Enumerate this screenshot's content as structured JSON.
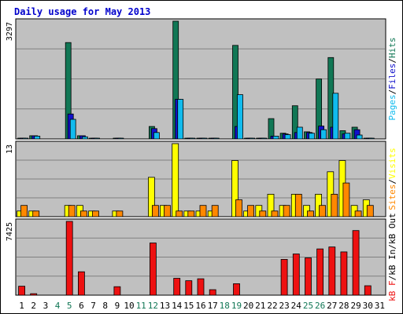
{
  "chart_data": {
    "type": "bar",
    "title": "Daily usage for May 2013",
    "categories": [
      "1",
      "2",
      "3",
      "4",
      "5",
      "6",
      "7",
      "8",
      "9",
      "10",
      "11",
      "12",
      "13",
      "14",
      "15",
      "16",
      "17",
      "18",
      "19",
      "20",
      "21",
      "22",
      "23",
      "24",
      "25",
      "26",
      "27",
      "28",
      "29",
      "30",
      "31"
    ],
    "weekend_days": [
      "4",
      "5",
      "11",
      "12",
      "18",
      "19",
      "25",
      "26"
    ],
    "panels": [
      {
        "name": "Hits / Files / Pages",
        "max_label": "3297",
        "ylim": [
          0,
          3297
        ],
        "legend": [
          "Pages",
          "/",
          "Files",
          "/",
          "Hits"
        ],
        "series": [
          {
            "name": "Hits",
            "color": "#117755",
            "values": [
              8,
              90,
              0,
              0,
              2700,
              90,
              14,
              0,
              10,
              0,
              0,
              350,
              0,
              3297,
              4,
              4,
              4,
              0,
              2620,
              4,
              6,
              570,
              160,
              930,
              200,
              1680,
              2280,
              230,
              330,
              14,
              0
            ]
          },
          {
            "name": "Files",
            "color": "#1111cc",
            "values": [
              4,
              90,
              0,
              0,
              700,
              90,
              4,
              0,
              4,
              0,
              0,
              290,
              0,
              1110,
              4,
              4,
              4,
              0,
              350,
              4,
              4,
              80,
              140,
              180,
              180,
              360,
              330,
              140,
              260,
              4,
              0
            ]
          },
          {
            "name": "Pages",
            "color": "#11bbee",
            "values": [
              4,
              80,
              0,
              0,
              550,
              60,
              4,
              0,
              4,
              0,
              0,
              180,
              0,
              1110,
              4,
              4,
              4,
              0,
              1240,
              4,
              4,
              80,
              120,
              330,
              160,
              260,
              1280,
              160,
              110,
              4,
              0
            ]
          }
        ]
      },
      {
        "name": "Visits / Sites",
        "max_label": "13",
        "ylim": [
          0,
          13
        ],
        "legend": [
          "Sites",
          "/",
          "Visits"
        ],
        "series": [
          {
            "name": "Visits",
            "color": "#ffff00",
            "values": [
              1,
              1,
              0,
              0,
              2,
              2,
              1,
              0,
              1,
              0,
              0,
              7,
              2,
              13,
              1,
              1,
              1,
              0,
              10,
              1,
              2,
              4,
              2,
              4,
              2,
              4,
              8,
              10,
              2,
              3,
              0
            ]
          },
          {
            "name": "Sites",
            "color": "#ff8800",
            "values": [
              2,
              1,
              0,
              0,
              2,
              1,
              1,
              0,
              1,
              0,
              0,
              2,
              2,
              1,
              1,
              2,
              2,
              0,
              3,
              2,
              1,
              1,
              2,
              4,
              1,
              2,
              4,
              6,
              1,
              2,
              0
            ]
          }
        ]
      },
      {
        "name": "kB F / kB In / kB Out",
        "max_label": "7425",
        "ylim": [
          0,
          7425
        ],
        "legend": [
          "kB F",
          "/",
          "kB In",
          "/",
          "kB Out"
        ],
        "series": [
          {
            "name": "kB F",
            "color": "#ee1111",
            "values": [
              900,
              150,
              0,
              0,
              7425,
              2350,
              0,
              0,
              850,
              0,
              0,
              5250,
              0,
              1700,
              1450,
              1650,
              550,
              0,
              1150,
              0,
              0,
              0,
              3600,
              4150,
              3750,
              4650,
              4850,
              4350,
              6500,
              950,
              0
            ]
          }
        ]
      }
    ]
  }
}
